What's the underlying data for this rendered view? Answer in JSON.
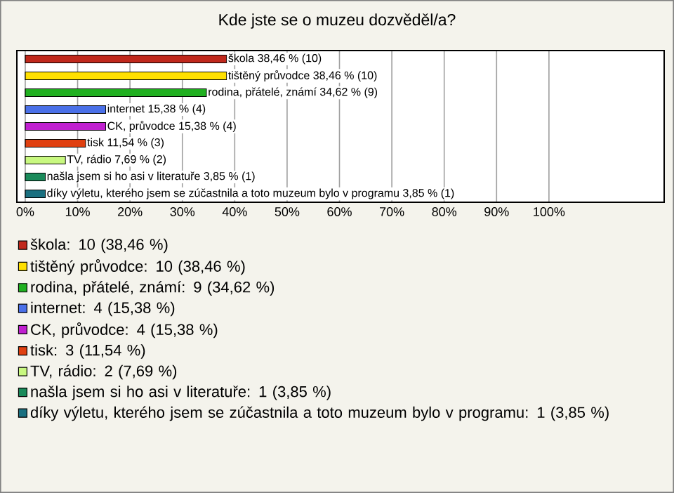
{
  "chart_data": {
    "type": "bar",
    "orientation": "horizontal",
    "title": "Kde jste se o muzeu dozvěděl/a?",
    "categories": [
      null,
      null,
      null,
      null,
      null,
      null,
      null,
      null,
      null
    ],
    "series": [
      {
        "name": "škola: 10 (38,46 %)",
        "color": "#c0281c",
        "values": [
          38.46,
          null,
          null,
          null,
          null,
          null,
          null,
          null,
          null
        ],
        "value_labels": [
          "škola 38,46 % (10)",
          null,
          null,
          null,
          null,
          null,
          null,
          null,
          null
        ]
      },
      {
        "name": "tištěný průvodce: 10 (38,46 %)",
        "color": "#ffe000",
        "values": [
          null,
          38.46,
          null,
          null,
          null,
          null,
          null,
          null,
          null
        ],
        "value_labels": [
          null,
          "tištěný průvodce 38,46 % (10)",
          null,
          null,
          null,
          null,
          null,
          null,
          null
        ]
      },
      {
        "name": "rodina, přátelé, známí: 9 (34,62 %)",
        "color": "#20b020",
        "values": [
          null,
          null,
          34.62,
          null,
          null,
          null,
          null,
          null,
          null
        ],
        "value_labels": [
          null,
          null,
          "rodina, přátelé, známí 34,62 % (9)",
          null,
          null,
          null,
          null,
          null,
          null
        ]
      },
      {
        "name": "internet: 4 (15,38 %)",
        "color": "#4a70e8",
        "values": [
          null,
          null,
          null,
          15.38,
          null,
          null,
          null,
          null,
          null
        ],
        "value_labels": [
          null,
          null,
          null,
          "internet 15,38 % (4)",
          null,
          null,
          null,
          null,
          null
        ]
      },
      {
        "name": "CK, průvodce: 4 (15,38 %)",
        "color": "#c020d0",
        "values": [
          null,
          null,
          null,
          null,
          15.38,
          null,
          null,
          null,
          null
        ],
        "value_labels": [
          null,
          null,
          null,
          null,
          "CK, průvodce 15,38 % (4)",
          null,
          null,
          null,
          null
        ]
      },
      {
        "name": "tisk: 3 (11,54 %)",
        "color": "#e04010",
        "values": [
          null,
          null,
          null,
          null,
          null,
          11.54,
          null,
          null,
          null
        ],
        "value_labels": [
          null,
          null,
          null,
          null,
          null,
          "tisk 11,54 % (3)",
          null,
          null,
          null
        ]
      },
      {
        "name": "TV, rádio: 2 (7,69 %)",
        "color": "#c8f880",
        "values": [
          null,
          null,
          null,
          null,
          null,
          null,
          7.69,
          null,
          null
        ],
        "value_labels": [
          null,
          null,
          null,
          null,
          null,
          null,
          "TV, rádio 7,69 % (2)",
          null,
          null
        ]
      },
      {
        "name": "našla jsem si ho asi v literatuře: 1 (3,85 %)",
        "color": "#1a8a5a",
        "values": [
          null,
          null,
          null,
          null,
          null,
          null,
          null,
          3.85,
          null
        ],
        "value_labels": [
          null,
          null,
          null,
          null,
          null,
          null,
          null,
          "našla jsem si ho asi v literatuře 3,85 % (1)",
          null
        ]
      },
      {
        "name": "díky výletu, kterého jsem se zúčastnila a toto muzeum bylo v programu: 1 (3,85 %)",
        "color": "#1a7080",
        "values": [
          null,
          null,
          null,
          null,
          null,
          null,
          null,
          null,
          3.85
        ],
        "value_labels": [
          null,
          null,
          null,
          null,
          null,
          null,
          null,
          null,
          "díky výletu, kterého jsem se zúčastnila a toto muzeum bylo v programu 3,85 % (1)"
        ]
      }
    ],
    "xlim": [
      -1.6,
      122
    ],
    "xticks": [
      {
        "value": 0,
        "label": "0%"
      },
      {
        "value": 10,
        "label": "10%"
      },
      {
        "value": 20,
        "label": "20%"
      },
      {
        "value": 30,
        "label": "30%"
      },
      {
        "value": 40,
        "label": "40%"
      },
      {
        "value": 50,
        "label": "50%"
      },
      {
        "value": 60,
        "label": "60%"
      },
      {
        "value": 70,
        "label": "70%"
      },
      {
        "value": 80,
        "label": "80%"
      },
      {
        "value": 90,
        "label": "90%"
      },
      {
        "value": 100,
        "label": "100%"
      }
    ],
    "grid": "x",
    "legend": "bottom",
    "tick_labels": "x"
  }
}
